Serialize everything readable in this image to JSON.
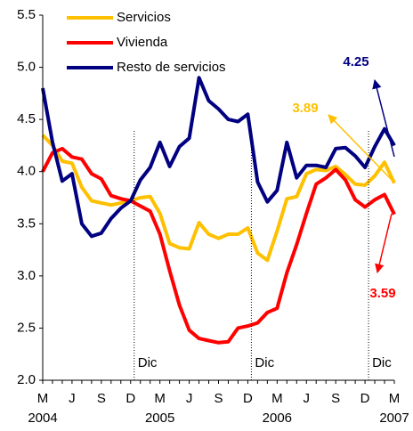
{
  "chart_data": {
    "type": "line",
    "categories": [
      "M",
      null,
      null,
      "J",
      null,
      null,
      "S",
      null,
      null,
      "D",
      null,
      null,
      "M",
      null,
      null,
      "J",
      null,
      null,
      "S",
      null,
      null,
      "D",
      null,
      null,
      "M",
      null,
      null,
      "J",
      null,
      null,
      "S",
      null,
      null,
      "D",
      null,
      null,
      "M"
    ],
    "category_groups": [
      "2004",
      "2005",
      "2006",
      "2007"
    ],
    "period_markers": [
      "Dic",
      "Dic",
      "Dic"
    ],
    "ylim": [
      2.0,
      5.5
    ],
    "yticks": [
      {
        "value": 2.0,
        "label": "2.0"
      },
      {
        "value": 2.5,
        "label": "2.5"
      },
      {
        "value": 3.0,
        "label": "3.0"
      },
      {
        "value": 3.5,
        "label": "3.5"
      },
      {
        "value": 4.0,
        "label": "4.0"
      },
      {
        "value": 4.5,
        "label": "4.5"
      },
      {
        "value": 5.0,
        "label": "5.0"
      },
      {
        "value": 5.5,
        "label": "5.5"
      }
    ],
    "grid": false,
    "legend": "top-left",
    "series": [
      {
        "name": "Servicios",
        "color": "#ffc000",
        "values": [
          4.35,
          4.25,
          4.1,
          4.08,
          3.85,
          3.72,
          3.7,
          3.68,
          3.7,
          3.72,
          3.75,
          3.76,
          3.6,
          3.31,
          3.27,
          3.26,
          3.51,
          3.4,
          3.36,
          3.4,
          3.4,
          3.46,
          3.22,
          3.15,
          3.43,
          3.74,
          3.76,
          3.98,
          4.02,
          4.01,
          4.05,
          3.97,
          3.88,
          3.87,
          3.96,
          4.09,
          3.89
        ]
      },
      {
        "name": "Vivienda",
        "color": "#ff0000",
        "values": [
          4.0,
          4.18,
          4.22,
          4.14,
          4.12,
          3.98,
          3.93,
          3.77,
          3.74,
          3.72,
          3.67,
          3.62,
          3.4,
          3.05,
          2.72,
          2.48,
          2.4,
          2.38,
          2.36,
          2.37,
          2.5,
          2.52,
          2.55,
          2.65,
          2.69,
          3.03,
          3.3,
          3.6,
          3.88,
          3.94,
          4.02,
          3.92,
          3.73,
          3.66,
          3.73,
          3.78,
          3.59
        ]
      },
      {
        "name": "Resto de servicios",
        "color": "#000080",
        "values": [
          4.8,
          4.28,
          3.91,
          3.98,
          3.5,
          3.38,
          3.41,
          3.55,
          3.65,
          3.72,
          3.92,
          4.04,
          4.28,
          4.05,
          4.24,
          4.32,
          4.9,
          4.68,
          4.6,
          4.5,
          4.48,
          4.55,
          3.9,
          3.71,
          3.82,
          4.28,
          3.94,
          4.06,
          4.06,
          4.04,
          4.22,
          4.23,
          4.15,
          4.04,
          4.24,
          4.41,
          4.25
        ]
      }
    ],
    "annotations": [
      {
        "label": "4.25",
        "color": "#000080"
      },
      {
        "label": "3.89",
        "color": "#ffc000"
      },
      {
        "label": "3.59",
        "color": "#ff0000"
      }
    ]
  }
}
